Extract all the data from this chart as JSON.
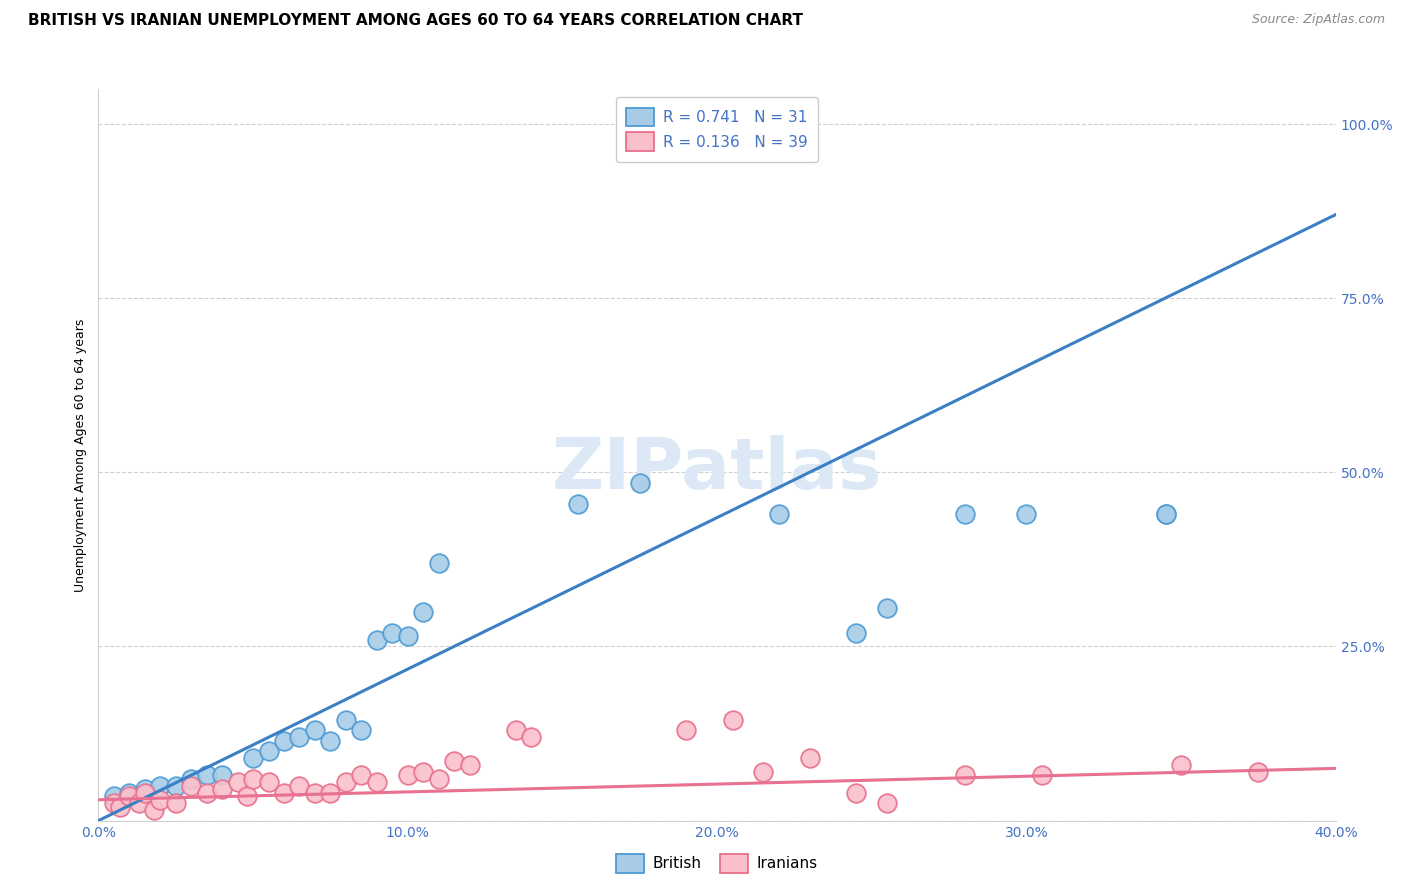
{
  "title": "BRITISH VS IRANIAN UNEMPLOYMENT AMONG AGES 60 TO 64 YEARS CORRELATION CHART",
  "source": "Source: ZipAtlas.com",
  "ylabel": "Unemployment Among Ages 60 to 64 years",
  "xlim": [
    0.0,
    0.4
  ],
  "ylim": [
    0.0,
    1.05
  ],
  "x_ticks": [
    0.0,
    0.1,
    0.2,
    0.3,
    0.4
  ],
  "x_tick_labels": [
    "0.0%",
    "10.0%",
    "20.0%",
    "30.0%",
    "40.0%"
  ],
  "y_ticks": [
    0.0,
    0.25,
    0.5,
    0.75,
    1.0
  ],
  "y_tick_labels": [
    "",
    "25.0%",
    "50.0%",
    "75.0%",
    "100.0%"
  ],
  "british_face_color": "#a8cce8",
  "british_edge_color": "#4d9bd4",
  "iranian_face_color": "#f9c0cc",
  "iranian_edge_color": "#e8708a",
  "british_line_color": "#3b7fc4",
  "iranian_line_color": "#e87090",
  "tick_color": "#4472c4",
  "watermark_color": "#dce8f5",
  "R_british": 0.741,
  "N_british": 31,
  "R_iranian": 0.136,
  "N_iranian": 39,
  "british_line_x0": 0.0,
  "british_line_y0": 0.0,
  "british_line_x1": 0.4,
  "british_line_y1": 0.87,
  "iranian_line_x0": 0.0,
  "iranian_line_y0": 0.03,
  "iranian_line_x1": 0.4,
  "iranian_line_y1": 0.075,
  "british_scatter_x": [
    0.005,
    0.01,
    0.015,
    0.02,
    0.025,
    0.03,
    0.035,
    0.04,
    0.05,
    0.055,
    0.06,
    0.065,
    0.07,
    0.075,
    0.08,
    0.085,
    0.09,
    0.095,
    0.1,
    0.105,
    0.11,
    0.155,
    0.175,
    0.22,
    0.245,
    0.255,
    0.28,
    0.3,
    0.345,
    0.345,
    0.22
  ],
  "british_scatter_y": [
    0.035,
    0.04,
    0.045,
    0.05,
    0.05,
    0.06,
    0.065,
    0.065,
    0.09,
    0.1,
    0.115,
    0.12,
    0.13,
    0.115,
    0.145,
    0.13,
    0.26,
    0.27,
    0.265,
    0.3,
    0.37,
    0.455,
    0.485,
    0.44,
    0.27,
    0.305,
    0.44,
    0.44,
    0.44,
    0.44,
    1.02
  ],
  "iranian_scatter_x": [
    0.005,
    0.007,
    0.01,
    0.013,
    0.015,
    0.018,
    0.02,
    0.025,
    0.03,
    0.035,
    0.04,
    0.045,
    0.048,
    0.05,
    0.055,
    0.06,
    0.065,
    0.07,
    0.075,
    0.08,
    0.085,
    0.09,
    0.1,
    0.105,
    0.11,
    0.115,
    0.12,
    0.135,
    0.14,
    0.19,
    0.205,
    0.215,
    0.23,
    0.245,
    0.255,
    0.28,
    0.305,
    0.35,
    0.375
  ],
  "iranian_scatter_y": [
    0.025,
    0.02,
    0.035,
    0.025,
    0.04,
    0.015,
    0.03,
    0.025,
    0.05,
    0.04,
    0.045,
    0.055,
    0.035,
    0.06,
    0.055,
    0.04,
    0.05,
    0.04,
    0.04,
    0.055,
    0.065,
    0.055,
    0.065,
    0.07,
    0.06,
    0.085,
    0.08,
    0.13,
    0.12,
    0.13,
    0.145,
    0.07,
    0.09,
    0.04,
    0.025,
    0.065,
    0.065,
    0.08,
    0.07
  ],
  "background_color": "#ffffff",
  "grid_color": "#d0d0d0",
  "title_fontsize": 11,
  "axis_label_fontsize": 9,
  "tick_fontsize": 10,
  "legend_fontsize": 11
}
